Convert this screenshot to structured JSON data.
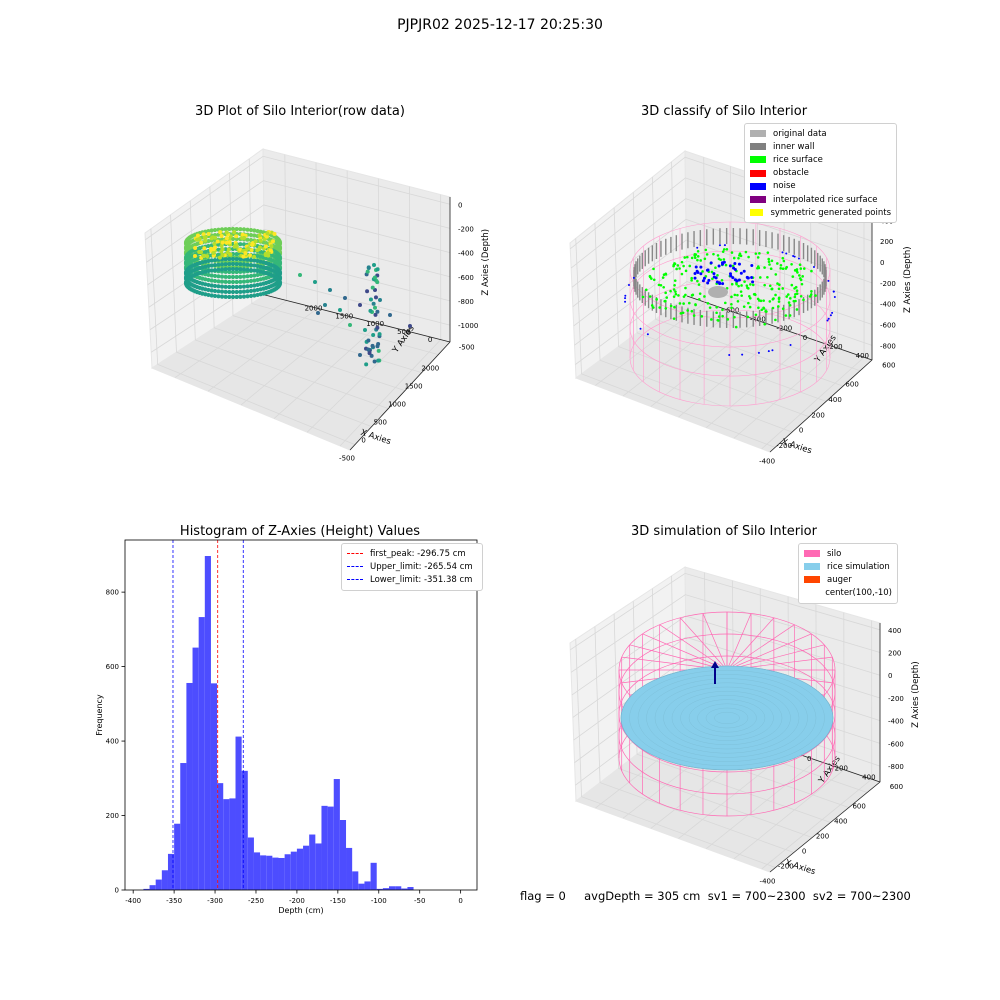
{
  "figure": {
    "suptitle": "PJPJR02 2025-12-17 20:25:30",
    "status_text": "flag = 0     avgDepth = 305 cm  sv1 = 700~2300  sv2 = 700~2300"
  },
  "colors": {
    "gray_light": "#b0b0b0",
    "gray_dark": "#808080",
    "green": "#00ff00",
    "red": "#ff0000",
    "blue": "#0000ff",
    "purple": "#800080",
    "yellow": "#ffff00",
    "pink": "#ff69b4",
    "sky": "#87ceeb",
    "auger": "#ff4500",
    "hist_bar": "#4d4dff"
  },
  "chart_data": [
    {
      "type": "scatter3d",
      "title": "3D Plot of Silo Interior(row data)",
      "xlabel": "X Axies",
      "ylabel": "Y Axies",
      "zlabel": "Z Axies (Depth)",
      "xticks": [
        "-500",
        "0",
        "500",
        "1000",
        "1500",
        "2000"
      ],
      "yticks": [
        "-500",
        "0",
        "500",
        "1000",
        "1500",
        "2000"
      ],
      "zticks": [
        "0",
        "-200",
        "-400",
        "-600",
        "-800",
        "-1000"
      ],
      "colormap": "viridis"
    },
    {
      "type": "scatter3d",
      "title": "3D classify of Silo Interior",
      "xlabel": "X Axies",
      "ylabel": "Y Axies",
      "zlabel": "Z Axies (Depth)",
      "xticks": [
        "-400",
        "-200",
        "0",
        "200",
        "400",
        "600"
      ],
      "yticks": [
        "600",
        "400",
        "200",
        "0",
        "-200",
        "-400",
        "-600"
      ],
      "zticks": [
        "400",
        "200",
        "0",
        "-200",
        "-400",
        "-600",
        "-800"
      ],
      "legend": [
        {
          "label": "original data",
          "color": "#b0b0b0"
        },
        {
          "label": "inner wall",
          "color": "#808080"
        },
        {
          "label": "rice surface",
          "color": "#00ff00"
        },
        {
          "label": "obstacle",
          "color": "#ff0000"
        },
        {
          "label": "noise",
          "color": "#0000ff"
        },
        {
          "label": "interpolated rice surface",
          "color": "#800080"
        },
        {
          "label": "symmetric generated points",
          "color": "#ffff00"
        }
      ]
    },
    {
      "type": "bar",
      "title": "Histogram of Z-Axies (Height) Values",
      "xlabel": "Depth (cm)",
      "ylabel": "Frequency",
      "xlim": [
        -410,
        20
      ],
      "ylim": [
        0,
        940
      ],
      "xticks": [
        -400,
        -350,
        -300,
        -250,
        -200,
        -150,
        -100,
        -50,
        0
      ],
      "yticks": [
        0,
        200,
        400,
        600,
        800
      ],
      "bin_width": 7.5,
      "bin_start": -387.5,
      "values": [
        3,
        13,
        28,
        53,
        97,
        178,
        341,
        556,
        651,
        733,
        897,
        555,
        287,
        244,
        246,
        412,
        320,
        141,
        101,
        93,
        92,
        87,
        86,
        96,
        103,
        111,
        119,
        149,
        125,
        226,
        224,
        298,
        188,
        113,
        50,
        17,
        23,
        73,
        3,
        5,
        10,
        10,
        4,
        8
      ],
      "lines": [
        {
          "label": "first_peak: -296.75 cm",
          "x": -296.75,
          "color": "#ff0000"
        },
        {
          "label": "Upper_limit: -265.54 cm",
          "x": -265.54,
          "color": "#0000ff"
        },
        {
          "label": "Lower_limit: -351.38 cm",
          "x": -351.38,
          "color": "#0000ff"
        }
      ]
    },
    {
      "type": "surface3d",
      "title": "3D simulation of Silo Interior",
      "xlabel": "X Axies",
      "ylabel": "Y Axies",
      "zlabel": "Z Axies (Depth)",
      "xticks": [
        "-400",
        "-200",
        "0",
        "200",
        "400",
        "600"
      ],
      "yticks": [
        "600",
        "400",
        "200",
        "0",
        "-200",
        "-400",
        "-600"
      ],
      "zticks": [
        "400",
        "200",
        "0",
        "-200",
        "-400",
        "-600",
        "-800"
      ],
      "legend": [
        {
          "label": "silo",
          "color": "#ff69b4"
        },
        {
          "label": "rice simulation",
          "color": "#87ceeb"
        },
        {
          "label": "auger",
          "color": "#ff4500"
        },
        {
          "label": "center(100,-10)",
          "color": ""
        }
      ]
    }
  ]
}
